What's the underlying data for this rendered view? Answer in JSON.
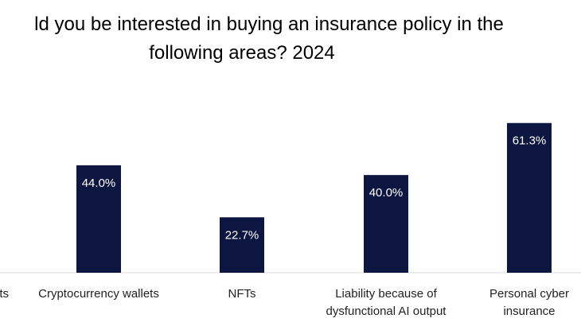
{
  "chart_data": {
    "type": "bar",
    "title_lines": [
      "ld you be interested in buying an insurance policy in the",
      "following areas? 2024"
    ],
    "categories": [
      [
        "ts"
      ],
      [
        "Cryptocurrency wallets"
      ],
      [
        "NFTs"
      ],
      [
        "Liability because of",
        "dysfunctional AI output"
      ],
      [
        "Personal cyber",
        "insurance"
      ]
    ],
    "values": [
      null,
      44.0,
      22.7,
      40.0,
      61.3
    ],
    "data_labels": [
      "",
      "44.0%",
      "22.7%",
      "40.0%",
      "61.3%"
    ],
    "ylim": [
      0,
      70
    ],
    "grid": false,
    "legend": "none",
    "bar_color": "#0d1640",
    "label_color": "#ffffff"
  }
}
